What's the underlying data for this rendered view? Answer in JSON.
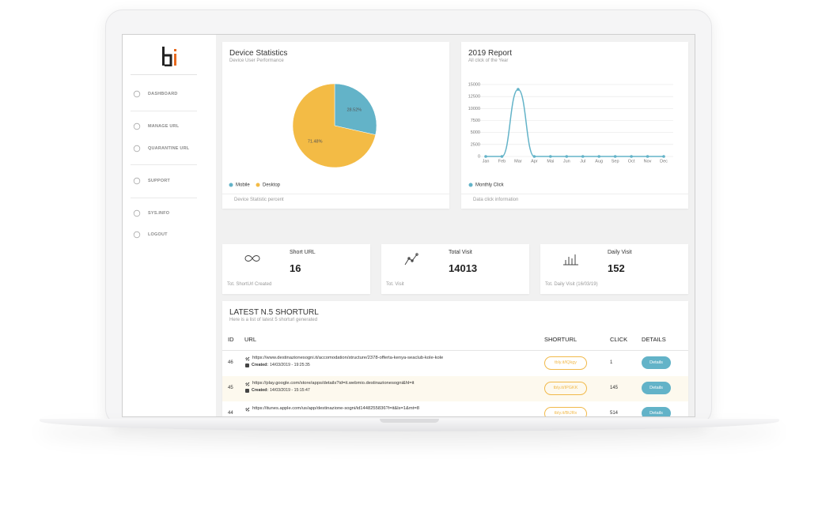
{
  "sidebar": {
    "menu": [
      "DASHBOARD",
      "MANAGE URL",
      "QUARANTINE URL",
      "SUPPORT",
      "SYS.INFO",
      "LOGOUT"
    ]
  },
  "chart_data": [
    {
      "type": "pie",
      "title": "Device Statistics",
      "subtitle": "Device User Performance",
      "categories": [
        "Mobile",
        "Desktop"
      ],
      "values": [
        28.52,
        71.48
      ],
      "value_labels": [
        "28.52%",
        "71.48%"
      ],
      "colors": [
        "#63b3c8",
        "#f3bb45"
      ],
      "legend": "bottom-left",
      "caption": "Device Statistic percent"
    },
    {
      "type": "line",
      "title": "2019 Report",
      "subtitle": "All click of the Year",
      "categories": [
        "Jan",
        "Feb",
        "Mar",
        "Apr",
        "Mai",
        "Jun",
        "Jul",
        "Aug",
        "Sep",
        "Oct",
        "Nov",
        "Dec"
      ],
      "series": [
        {
          "name": "Monthly Click",
          "color": "#63b3c8",
          "values": [
            0,
            0,
            14000,
            0,
            0,
            0,
            0,
            0,
            0,
            0,
            0,
            0
          ]
        }
      ],
      "ylim": [
        0,
        15000
      ],
      "yticks": [
        0,
        2500,
        5000,
        7500,
        10000,
        12500,
        15000
      ],
      "grid": true,
      "legend": "bottom-left",
      "caption": "Data click information"
    }
  ],
  "stats": [
    {
      "label": "Short URL",
      "value": 16,
      "caption": "Tot. ShortUrl Created"
    },
    {
      "label": "Total Visit",
      "value": 14013,
      "caption": "Tot. Visit"
    },
    {
      "label": "Daily Visit",
      "value": 152,
      "caption": "Tot. Daily Visit (16/03/19)"
    }
  ],
  "table": {
    "title": "LATEST N.5 SHORTURL",
    "subtitle": "Here is a list of latest 5 shorturl generated",
    "columns": [
      "ID",
      "URL",
      "SHORTURL",
      "CLICK",
      "DETAILS"
    ],
    "rows": [
      {
        "id": 46,
        "url": "https://www.destinazionesogni.it/accomodation/structure/2378-offerta-kenya-seaclub-kole-kole",
        "created_label": "Created:",
        "created": "14/03/2019 - 19:25:35",
        "shorturl": "tbly.it/lQkgy",
        "click": 1,
        "action": "Details"
      },
      {
        "id": 45,
        "url": "https://play.google.com/store/apps/details?id=it.webmio.destinazionesogni&hl=it",
        "created_label": "Created:",
        "created": "14/03/2019 - 15:15:47",
        "shorturl": "tbly.it/IPGKK",
        "click": 145,
        "action": "Details"
      },
      {
        "id": 44,
        "url": "https://itunes.apple.com/us/app/destinazione-sogni/id1448255836?l=it&ls=1&mt=8",
        "shorturl": "tbly.it/BtJRx",
        "click": 514,
        "action": "Details"
      }
    ]
  }
}
